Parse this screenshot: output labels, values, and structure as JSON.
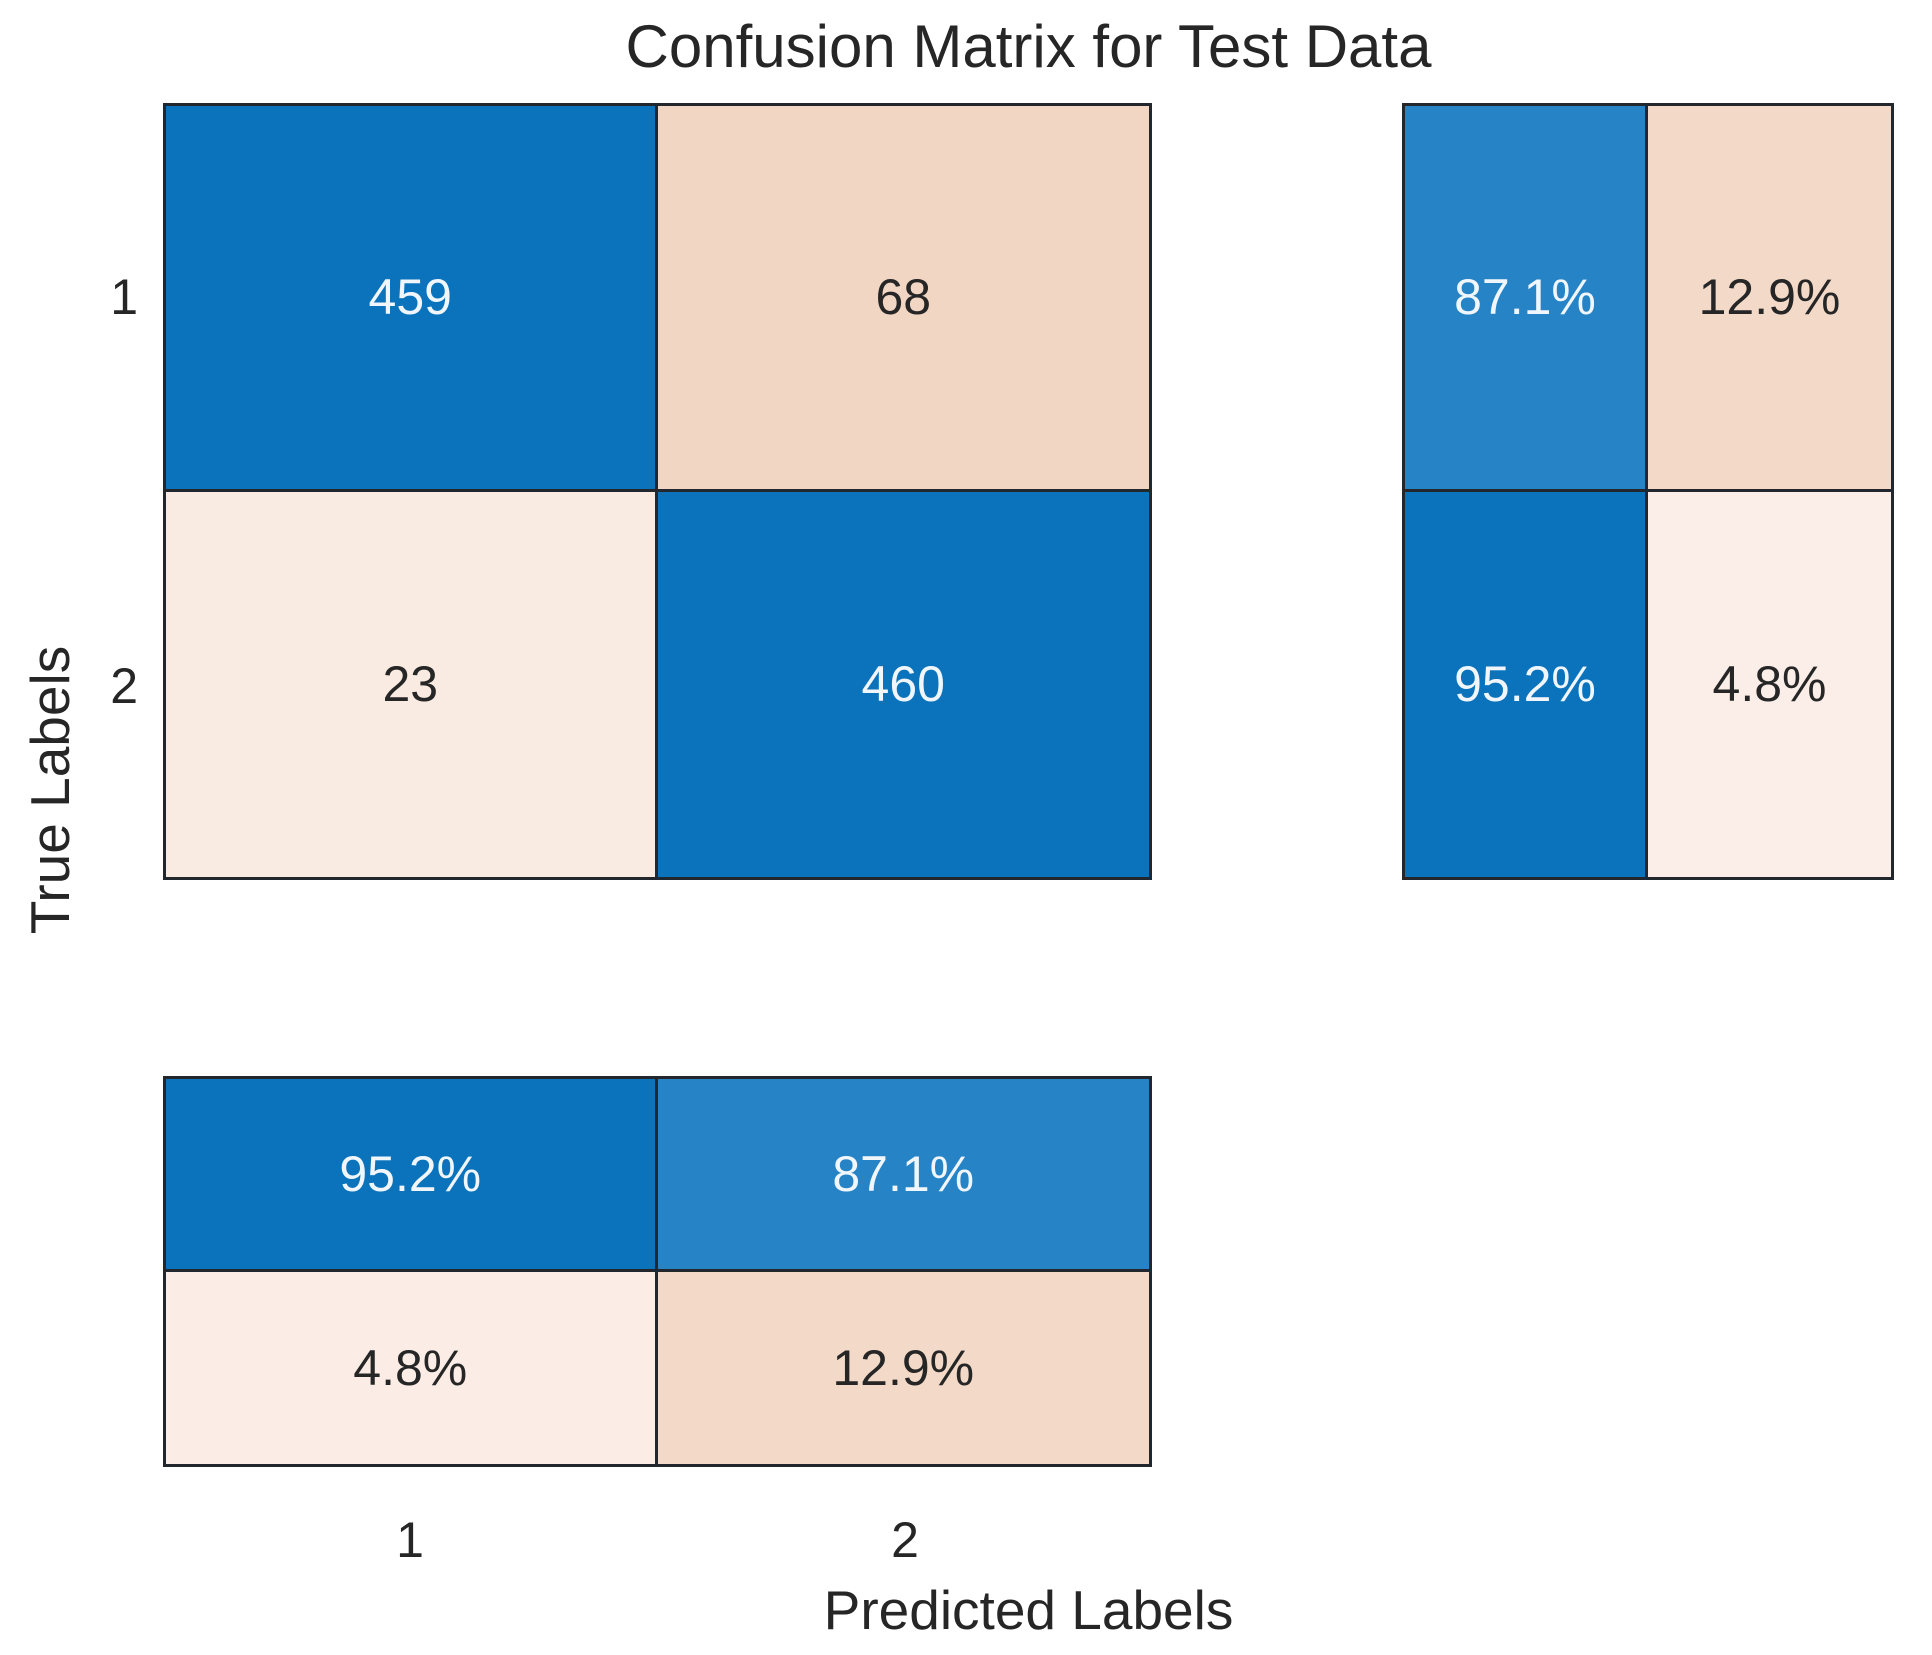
{
  "title": "Confusion Matrix for Test Data",
  "axes": {
    "xlabel": "Predicted Labels",
    "ylabel": "True Labels",
    "x_ticks": [
      "1",
      "2"
    ],
    "y_ticks": [
      "1",
      "2"
    ]
  },
  "colors": {
    "diagonal_blue": "#0b73bc",
    "diagonal_blue_light": "#2583c6",
    "offdiag_salmon": "#f2d6c4",
    "offdiag_salmon_mid": "#f3dac8",
    "offdiag_salmon_pale": "#faebe2",
    "offdiag_salmon_faint": "#fbeee8",
    "text_on_blue": "#f0f6fb",
    "text_on_pink": "#262626",
    "grid_line": "#22272e"
  },
  "main_matrix": {
    "cells": [
      {
        "value": "459",
        "bg": "#0b73bc",
        "fg": "#f0f6fb"
      },
      {
        "value": "68",
        "bg": "#f2d6c4",
        "fg": "#262626"
      },
      {
        "value": "23",
        "bg": "#faebe2",
        "fg": "#262626"
      },
      {
        "value": "460",
        "bg": "#0b73bc",
        "fg": "#f0f6fb"
      }
    ]
  },
  "row_summary": {
    "cells": [
      {
        "value": "87.1%",
        "bg": "#2583c6",
        "fg": "#f0f6fb"
      },
      {
        "value": "12.9%",
        "bg": "#f3dac8",
        "fg": "#262626"
      },
      {
        "value": "95.2%",
        "bg": "#0b73bc",
        "fg": "#f0f6fb"
      },
      {
        "value": "4.8%",
        "bg": "#fbeee8",
        "fg": "#262626"
      }
    ]
  },
  "column_summary": {
    "cells": [
      {
        "value": "95.2%",
        "bg": "#0b73bc",
        "fg": "#f0f6fb"
      },
      {
        "value": "87.1%",
        "bg": "#2583c6",
        "fg": "#f0f6fb"
      },
      {
        "value": "4.8%",
        "bg": "#fbede6",
        "fg": "#262626"
      },
      {
        "value": "12.9%",
        "bg": "#f3dac8",
        "fg": "#262626"
      }
    ]
  },
  "chart_data": {
    "type": "heatmap",
    "subtype": "confusion-matrix",
    "title": "Confusion Matrix for Test Data",
    "xlabel": "Predicted Labels",
    "ylabel": "True Labels",
    "classes": [
      "1",
      "2"
    ],
    "matrix_rows_true_by_pred": [
      [
        459,
        68
      ],
      [
        23,
        460
      ]
    ],
    "row_summary_percent": [
      [
        87.1,
        12.9
      ],
      [
        95.2,
        4.8
      ]
    ],
    "column_summary_percent": [
      [
        95.2,
        87.1
      ],
      [
        4.8,
        12.9
      ]
    ],
    "legend_position": "none",
    "grid": "cell-borders",
    "diagonal_color": "#0b73bc",
    "offdiagonal_color": "#f2d6c4"
  }
}
